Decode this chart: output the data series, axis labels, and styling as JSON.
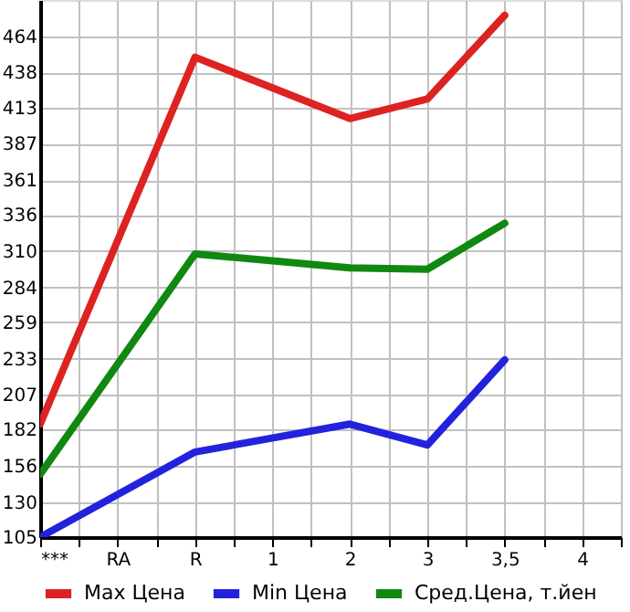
{
  "chart_data": {
    "type": "line",
    "categories": [
      "***",
      "RA",
      "R",
      "1",
      "2",
      "3",
      "3,5",
      "4"
    ],
    "series": [
      {
        "name": "Max Цена",
        "color": "#dd2222",
        "values": [
          186,
          null,
          449,
          null,
          405,
          419,
          479,
          null
        ]
      },
      {
        "name": "Min Цена",
        "color": "#2222dd",
        "values": [
          105,
          null,
          166,
          null,
          186,
          171,
          232,
          null
        ]
      },
      {
        "name": "Сред.Цена, т.йен",
        "color": "#118811",
        "values": [
          150,
          null,
          308,
          null,
          298,
          297,
          330,
          null
        ]
      }
    ],
    "ylim": [
      105,
      490
    ],
    "yticks": [
      105,
      130,
      156,
      182,
      207,
      233,
      259,
      284,
      310,
      336,
      361,
      387,
      413,
      438,
      464
    ],
    "grid": true,
    "legend": "bottom",
    "marker": "none",
    "line_style": "solid"
  }
}
